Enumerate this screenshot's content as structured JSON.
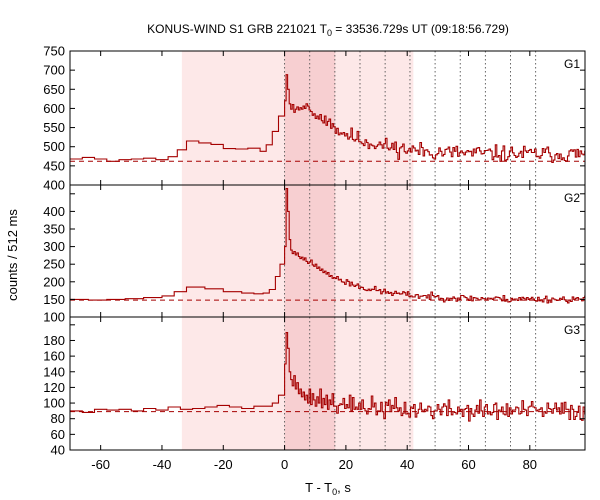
{
  "chart_data": {
    "type": "line",
    "title_parts": {
      "prefix": "KONUS-WIND S1 GRB 221021 T",
      "sub": "0",
      "suffix": " = 33536.729s UT (09:18:56.729)"
    },
    "xlabel_parts": {
      "prefix": "T - T",
      "sub": "0",
      "suffix": ", s"
    },
    "ylabel": "counts / 512 ms",
    "xlim": [
      -70,
      98
    ],
    "x_ticks": [
      -60,
      -40,
      -20,
      0,
      20,
      40,
      60,
      80
    ],
    "x_tick_labels": [
      "-60",
      "-40",
      "-20",
      "0",
      "20",
      "40",
      "60",
      "80"
    ],
    "line_color": "#a50000",
    "background_interval": {
      "x": [
        -33.5,
        42
      ],
      "color": "#fde8e8"
    },
    "peak_interval": {
      "x": [
        0,
        16.5
      ],
      "color": "#f7cfd1"
    },
    "time_markers": [
      0,
      8.2,
      16.4,
      24.6,
      32.8,
      40.9,
      49.1,
      57.3,
      65.5,
      73.7,
      81.9
    ],
    "panels": [
      {
        "label": "G1",
        "ylim": [
          400,
          750
        ],
        "y_ticks": [
          400,
          450,
          500,
          550,
          600,
          650,
          700,
          750
        ],
        "y_tick_labels": [
          "400",
          "450",
          "500",
          "550",
          "600",
          "650",
          "700",
          "750"
        ],
        "background_level": 462,
        "pre_steps": [
          [
            -70,
            468
          ],
          [
            -66,
            472
          ],
          [
            -62,
            468
          ],
          [
            -58,
            462
          ],
          [
            -54,
            466
          ],
          [
            -50,
            468
          ],
          [
            -46,
            470
          ],
          [
            -42,
            466
          ],
          [
            -38,
            474
          ],
          [
            -35,
            492
          ],
          [
            -32,
            515
          ],
          [
            -28,
            510
          ],
          [
            -24,
            506
          ],
          [
            -20,
            495
          ],
          [
            -16,
            494
          ],
          [
            -12,
            496
          ],
          [
            -8,
            488
          ],
          [
            -6,
            505
          ],
          [
            -4,
            540
          ],
          [
            -2,
            580
          ]
        ],
        "peak": [
          [
            0,
            620
          ],
          [
            0.5,
            688
          ],
          [
            1,
            650
          ],
          [
            1.5,
            612
          ],
          [
            2,
            598
          ],
          [
            2.5,
            610
          ],
          [
            3,
            590
          ],
          [
            3.5,
            598
          ],
          [
            4,
            604
          ],
          [
            4.5,
            596
          ],
          [
            5,
            602
          ],
          [
            5.5,
            598
          ],
          [
            6,
            606
          ],
          [
            6.5,
            600
          ],
          [
            7,
            612
          ],
          [
            7.5,
            606
          ],
          [
            8,
            596
          ],
          [
            8.5,
            592
          ],
          [
            9,
            582
          ],
          [
            9.5,
            586
          ],
          [
            10,
            574
          ],
          [
            10.5,
            580
          ],
          [
            11,
            572
          ],
          [
            11.5,
            584
          ],
          [
            12,
            568
          ],
          [
            12.5,
            562
          ],
          [
            13,
            580
          ],
          [
            13.5,
            556
          ],
          [
            14,
            566
          ],
          [
            14.5,
            572
          ],
          [
            15,
            548
          ],
          [
            15.5,
            560
          ],
          [
            16,
            552
          ]
        ],
        "tail": {
          "start": 16.5,
          "end": 98,
          "level": [
            548,
            480
          ],
          "tau": 14,
          "noise": 20,
          "seed": 11
        }
      },
      {
        "label": "G2",
        "ylim": [
          100,
          475
        ],
        "y_ticks": [
          100,
          150,
          200,
          250,
          300,
          350,
          400,
          450
        ],
        "y_tick_labels": [
          "100",
          "150",
          "200",
          "250",
          "300",
          "350",
          "400",
          "450"
        ],
        "background_level": 148,
        "pre_steps": [
          [
            -70,
            150
          ],
          [
            -64,
            148
          ],
          [
            -58,
            150
          ],
          [
            -52,
            152
          ],
          [
            -46,
            155
          ],
          [
            -40,
            160
          ],
          [
            -36,
            172
          ],
          [
            -32,
            185
          ],
          [
            -26,
            180
          ],
          [
            -20,
            172
          ],
          [
            -14,
            168
          ],
          [
            -10,
            166
          ],
          [
            -7,
            168
          ],
          [
            -5,
            178
          ],
          [
            -3,
            215
          ],
          [
            -1.5,
            250
          ]
        ],
        "peak": [
          [
            0,
            300
          ],
          [
            0.5,
            465
          ],
          [
            1,
            400
          ],
          [
            1.5,
            320
          ],
          [
            2,
            290
          ],
          [
            2.5,
            280
          ],
          [
            3,
            286
          ],
          [
            3.5,
            276
          ],
          [
            4,
            282
          ],
          [
            4.5,
            272
          ],
          [
            5,
            266
          ],
          [
            5.5,
            270
          ],
          [
            6,
            262
          ],
          [
            6.5,
            268
          ],
          [
            7,
            258
          ],
          [
            7.5,
            252
          ],
          [
            8,
            256
          ],
          [
            8.5,
            262
          ],
          [
            9,
            248
          ],
          [
            9.5,
            244
          ],
          [
            10,
            250
          ],
          [
            10.5,
            238
          ],
          [
            11,
            242
          ],
          [
            11.5,
            232
          ],
          [
            12,
            236
          ],
          [
            12.5,
            226
          ],
          [
            13,
            230
          ],
          [
            13.5,
            222
          ],
          [
            14,
            226
          ],
          [
            14.5,
            215
          ],
          [
            15,
            218
          ],
          [
            15.5,
            210
          ],
          [
            16,
            212
          ]
        ],
        "tail": {
          "start": 16.5,
          "end": 98,
          "level": [
            212,
            150
          ],
          "tau": 15,
          "noise": 9,
          "seed": 23
        }
      },
      {
        "label": "G3",
        "ylim": [
          40,
          210
        ],
        "y_ticks": [
          40,
          60,
          80,
          100,
          120,
          140,
          160,
          180,
          200
        ],
        "y_tick_labels": [
          "40",
          "60",
          "80",
          "100",
          "120",
          "140",
          "160",
          "180",
          "200"
        ],
        "background_level": 89,
        "pre_steps": [
          [
            -70,
            90
          ],
          [
            -66,
            88
          ],
          [
            -62,
            92
          ],
          [
            -58,
            91
          ],
          [
            -54,
            92
          ],
          [
            -50,
            90
          ],
          [
            -46,
            93
          ],
          [
            -42,
            91
          ],
          [
            -38,
            95
          ],
          [
            -34,
            92
          ],
          [
            -30,
            93
          ],
          [
            -26,
            95
          ],
          [
            -22,
            97
          ],
          [
            -18,
            95
          ],
          [
            -14,
            93
          ],
          [
            -10,
            96
          ],
          [
            -6,
            96
          ],
          [
            -4,
            100
          ],
          [
            -2,
            110
          ]
        ],
        "peak": [
          [
            0,
            150
          ],
          [
            0.5,
            190
          ],
          [
            1,
            170
          ],
          [
            1.5,
            140
          ],
          [
            2,
            130
          ],
          [
            2.5,
            122
          ],
          [
            3,
            135
          ],
          [
            3.5,
            118
          ],
          [
            4,
            126
          ],
          [
            4.5,
            112
          ],
          [
            5,
            118
          ],
          [
            5.5,
            108
          ],
          [
            6,
            114
          ],
          [
            6.5,
            104
          ],
          [
            7,
            110
          ],
          [
            7.5,
            100
          ],
          [
            8,
            118
          ],
          [
            8.5,
            98
          ],
          [
            9,
            112
          ],
          [
            9.5,
            104
          ],
          [
            10,
            96
          ],
          [
            10.5,
            108
          ],
          [
            11,
            100
          ],
          [
            11.5,
            118
          ],
          [
            12,
            94
          ],
          [
            12.5,
            106
          ],
          [
            13,
            98
          ],
          [
            13.5,
            110
          ],
          [
            14,
            92
          ],
          [
            14.5,
            104
          ],
          [
            15,
            98
          ],
          [
            15.5,
            112
          ],
          [
            16,
            96
          ]
        ],
        "tail": {
          "start": 16.5,
          "end": 98,
          "level": [
            102,
            90
          ],
          "tau": 12,
          "noise": 12,
          "seed": 37
        }
      }
    ]
  }
}
